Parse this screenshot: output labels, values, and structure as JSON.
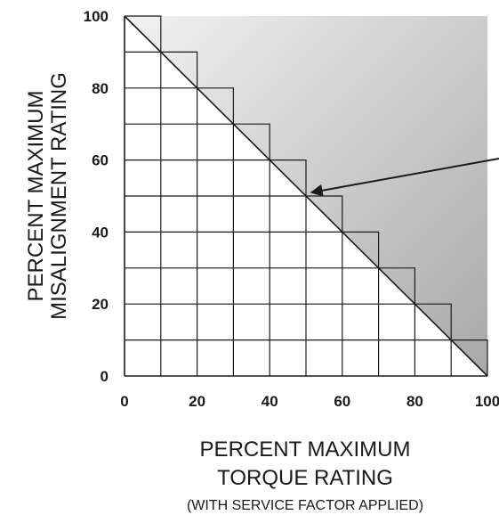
{
  "chart_data": {
    "type": "area",
    "x_ticks": [
      0,
      20,
      40,
      60,
      80,
      100
    ],
    "y_ticks": [
      0,
      20,
      40,
      60,
      80,
      100
    ],
    "xlim": [
      0,
      100
    ],
    "ylim": [
      0,
      100
    ],
    "grid_step": 10,
    "staircase_boundary": [
      {
        "x": 0,
        "y": 100
      },
      {
        "x": 10,
        "y": 90
      },
      {
        "x": 20,
        "y": 80
      },
      {
        "x": 30,
        "y": 70
      },
      {
        "x": 40,
        "y": 60
      },
      {
        "x": 50,
        "y": 50
      },
      {
        "x": 60,
        "y": 40
      },
      {
        "x": 70,
        "y": 30
      },
      {
        "x": 80,
        "y": 20
      },
      {
        "x": 90,
        "y": 10
      },
      {
        "x": 100,
        "y": 0
      }
    ],
    "limit_line": {
      "from": [
        0,
        100
      ],
      "to": [
        100,
        0
      ]
    },
    "shaded_region": "above-diagonal",
    "shade_colors": {
      "light": "#f2f2f2",
      "dark": "#a8a8a8"
    },
    "ylabel_lines": [
      "PERCENT MAXIMUM",
      "MISALIGNMENT RATING"
    ],
    "xlabel_lines": [
      "PERCENT MAXIMUM",
      "TORQUE RATING"
    ],
    "xlabel_note": "(WITH SERVICE FACTOR APPLIED)",
    "arrow_target": {
      "x": 50,
      "y": 50
    },
    "grid": true,
    "legend": "none"
  }
}
